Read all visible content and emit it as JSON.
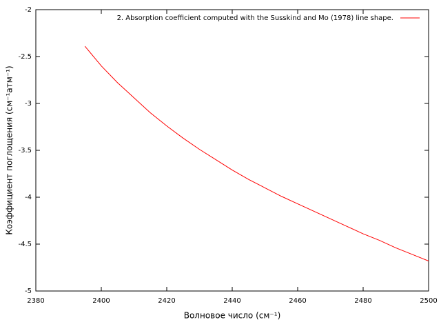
{
  "chart_data": {
    "type": "line",
    "x_label": "Волновое число (см⁻¹)",
    "y_label": "Коэффициент поглощения (см⁻¹атм⁻¹)",
    "x": [
      2395,
      2400,
      2405,
      2410,
      2415,
      2420,
      2425,
      2430,
      2435,
      2440,
      2445,
      2450,
      2455,
      2460,
      2465,
      2470,
      2475,
      2480,
      2485,
      2490,
      2495,
      2500
    ],
    "series": [
      {
        "name": "2. Absorption coefficient computed with the Susskind and Mo (1978) line shape.",
        "color": "#ff0000",
        "values": [
          -2.39,
          -2.6,
          -2.78,
          -2.94,
          -3.1,
          -3.24,
          -3.37,
          -3.49,
          -3.6,
          -3.71,
          -3.81,
          -3.9,
          -3.99,
          -4.07,
          -4.15,
          -4.23,
          -4.31,
          -4.39,
          -4.46,
          -4.54,
          -4.61,
          -4.68
        ]
      }
    ],
    "xlim": [
      2380,
      2500
    ],
    "xticks": [
      2380,
      2400,
      2420,
      2440,
      2460,
      2480,
      2500
    ],
    "ylim": [
      -5,
      -2
    ],
    "yticks": [
      -5,
      -4.5,
      -4,
      -3.5,
      -3,
      -2.5,
      -2
    ],
    "legend": "top-right"
  }
}
